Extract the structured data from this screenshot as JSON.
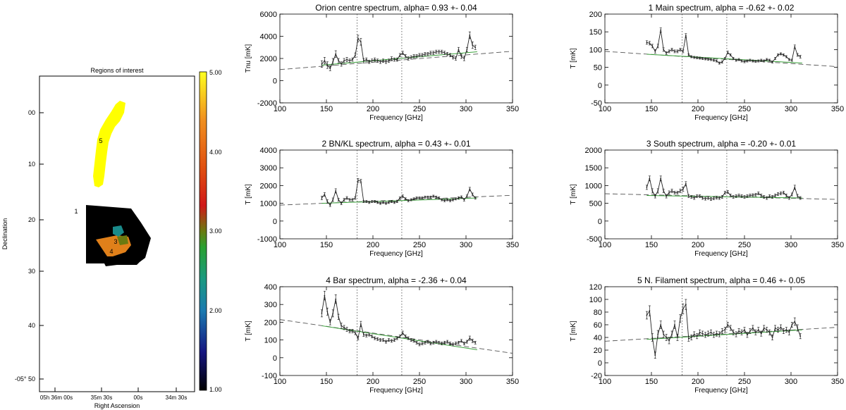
{
  "map": {
    "title": "Regions of interest",
    "xlabel": "Right Ascension",
    "ylabel": "Declination",
    "dec_ticks": [
      "00",
      "10",
      "20",
      "30",
      "40",
      "-05° 50"
    ],
    "ra_ticks": [
      "05h 36m 00s",
      "35m 30s",
      "00s",
      "34m 30s"
    ],
    "colorbar_ticks": [
      "5.00",
      "4.00",
      "3.00",
      "2.00",
      "1.00"
    ],
    "colorbar_range": [
      1,
      5
    ],
    "region_labels": [
      "1",
      "3",
      "4",
      "5"
    ],
    "region_colors": {
      "1": "#000000",
      "2": "#1a8a8a",
      "3": "#6b7a10",
      "4": "#e0801a",
      "5": "#ffff00"
    }
  },
  "chart_data": [
    {
      "type": "line",
      "title": "Orion centre spectrum, alpha=  0.93 +-  0.04",
      "xlabel": "Frequency [GHz]",
      "ylabel": "Tnu [mK]",
      "xlim": [
        100,
        350
      ],
      "ylim": [
        -2000,
        6000
      ],
      "yticks": [
        -2000,
        0,
        2000,
        4000,
        6000
      ],
      "xticks": [
        100,
        150,
        200,
        250,
        300,
        350
      ],
      "vlines": [
        183,
        231
      ],
      "dashed_fit": {
        "x": [
          100,
          350
        ],
        "y": [
          1000,
          2650
        ]
      },
      "green_fit": {
        "x": [
          145,
          312
        ],
        "y": [
          1400,
          2600
        ]
      },
      "x": [
        145,
        148,
        151,
        154,
        157,
        160,
        163,
        166,
        169,
        172,
        175,
        178,
        181,
        184,
        187,
        190,
        193,
        196,
        199,
        202,
        205,
        208,
        211,
        214,
        217,
        220,
        223,
        226,
        229,
        232,
        235,
        238,
        241,
        244,
        247,
        250,
        253,
        256,
        259,
        262,
        265,
        268,
        271,
        274,
        277,
        280,
        283,
        286,
        289,
        292,
        295,
        298,
        301,
        304,
        307,
        310
      ],
      "y": [
        1500,
        1800,
        1400,
        1100,
        1700,
        2400,
        1800,
        1500,
        1800,
        1900,
        1800,
        1900,
        2300,
        3800,
        3500,
        1800,
        1900,
        1700,
        1800,
        1900,
        1800,
        1700,
        1800,
        1700,
        1800,
        2000,
        1900,
        1900,
        2300,
        2500,
        2200,
        2000,
        2100,
        2200,
        2200,
        2300,
        2300,
        2400,
        2400,
        2500,
        2500,
        2600,
        2600,
        2600,
        2500,
        2400,
        2300,
        2100,
        2000,
        2800,
        2200,
        2000,
        2800,
        4100,
        3200,
        3000
      ],
      "errors": [
        300,
        300,
        300,
        200,
        300,
        300,
        200,
        200,
        200,
        200,
        150,
        150,
        200,
        300,
        300,
        200,
        150,
        150,
        150,
        150,
        150,
        150,
        150,
        150,
        150,
        150,
        150,
        150,
        150,
        150,
        150,
        150,
        150,
        150,
        150,
        150,
        150,
        150,
        150,
        150,
        150,
        150,
        150,
        150,
        150,
        150,
        150,
        150,
        150,
        200,
        200,
        200,
        200,
        300,
        300,
        200
      ]
    },
    {
      "type": "line",
      "title": "1 Main spectrum, alpha = -0.62 +-  0.02",
      "xlabel": "Frequency [GHz]",
      "ylabel": "T [mK]",
      "xlim": [
        100,
        350
      ],
      "ylim": [
        -50,
        200
      ],
      "yticks": [
        -50,
        0,
        50,
        100,
        150,
        200
      ],
      "xticks": [
        100,
        150,
        200,
        250,
        300,
        350
      ],
      "vlines": [
        183,
        231
      ],
      "dashed_fit": {
        "x": [
          100,
          350
        ],
        "y": [
          95,
          52
        ]
      },
      "green_fit": {
        "x": [
          145,
          312
        ],
        "y": [
          87,
          62
        ]
      },
      "x": [
        145,
        148,
        151,
        154,
        157,
        160,
        163,
        166,
        169,
        172,
        175,
        178,
        181,
        184,
        187,
        190,
        193,
        196,
        199,
        202,
        205,
        208,
        211,
        214,
        217,
        220,
        223,
        226,
        229,
        232,
        235,
        238,
        241,
        244,
        247,
        250,
        253,
        256,
        259,
        262,
        265,
        268,
        271,
        274,
        277,
        280,
        283,
        286,
        289,
        292,
        295,
        298,
        301,
        304,
        307,
        310
      ],
      "y": [
        120,
        118,
        110,
        95,
        110,
        155,
        100,
        90,
        95,
        100,
        95,
        95,
        100,
        95,
        140,
        85,
        80,
        78,
        77,
        76,
        75,
        74,
        73,
        72,
        70,
        68,
        62,
        65,
        75,
        92,
        85,
        75,
        70,
        72,
        68,
        66,
        68,
        70,
        68,
        67,
        68,
        70,
        68,
        72,
        70,
        65,
        75,
        85,
        88,
        85,
        80,
        72,
        70,
        108,
        85,
        80
      ],
      "errors": [
        5,
        5,
        5,
        5,
        5,
        6,
        5,
        4,
        4,
        4,
        4,
        4,
        4,
        4,
        5,
        3,
        3,
        3,
        3,
        3,
        3,
        3,
        3,
        3,
        3,
        3,
        3,
        3,
        3,
        4,
        3,
        3,
        3,
        3,
        3,
        3,
        3,
        3,
        3,
        3,
        3,
        3,
        3,
        3,
        3,
        3,
        3,
        3,
        3,
        3,
        3,
        3,
        3,
        5,
        4,
        4
      ]
    },
    {
      "type": "line",
      "title": "2 BN/KL spectrum, alpha =  0.43 +-  0.01",
      "xlabel": "Frequency [GHz]",
      "ylabel": "T [mK]",
      "xlim": [
        100,
        350
      ],
      "ylim": [
        -1000,
        4000
      ],
      "yticks": [
        -1000,
        0,
        1000,
        2000,
        3000,
        4000
      ],
      "xticks": [
        100,
        150,
        200,
        250,
        300,
        350
      ],
      "vlines": [
        183,
        231
      ],
      "dashed_fit": {
        "x": [
          100,
          350
        ],
        "y": [
          900,
          1450
        ]
      },
      "green_fit": {
        "x": [
          145,
          312
        ],
        "y": [
          1000,
          1300
        ]
      },
      "x": [
        145,
        148,
        151,
        154,
        157,
        160,
        163,
        166,
        169,
        172,
        175,
        178,
        181,
        184,
        187,
        190,
        193,
        196,
        199,
        202,
        205,
        208,
        211,
        214,
        217,
        220,
        223,
        226,
        229,
        232,
        235,
        238,
        241,
        244,
        247,
        250,
        253,
        256,
        259,
        262,
        265,
        268,
        271,
        274,
        277,
        280,
        283,
        286,
        289,
        292,
        295,
        298,
        301,
        304,
        307,
        310
      ],
      "y": [
        1300,
        1500,
        1100,
        900,
        1200,
        1700,
        1200,
        1000,
        1200,
        1300,
        1200,
        1200,
        1300,
        2300,
        2250,
        1100,
        1100,
        1050,
        1100,
        1100,
        1050,
        1000,
        1050,
        1000,
        1050,
        1100,
        1050,
        1100,
        1300,
        1400,
        1250,
        1150,
        1200,
        1250,
        1300,
        1300,
        1300,
        1350,
        1350,
        1350,
        1400,
        1350,
        1300,
        1200,
        1150,
        1200,
        1150,
        1200,
        1250,
        1300,
        1350,
        1200,
        1400,
        1800,
        1500,
        1300
      ],
      "errors": [
        100,
        100,
        100,
        80,
        100,
        120,
        80,
        80,
        80,
        80,
        70,
        70,
        80,
        100,
        100,
        60,
        60,
        60,
        60,
        60,
        60,
        60,
        60,
        60,
        60,
        60,
        60,
        60,
        60,
        70,
        60,
        60,
        60,
        60,
        60,
        60,
        60,
        60,
        60,
        60,
        60,
        60,
        60,
        60,
        60,
        60,
        60,
        60,
        60,
        70,
        70,
        70,
        70,
        100,
        80,
        70
      ]
    },
    {
      "type": "line",
      "title": "3 South spectrum, alpha = -0.20 +-  0.01",
      "xlabel": "Frequency [GHz]",
      "ylabel": "T [mK]",
      "xlim": [
        100,
        350
      ],
      "ylim": [
        -500,
        2000
      ],
      "yticks": [
        -500,
        0,
        500,
        1000,
        1500,
        2000
      ],
      "xticks": [
        100,
        150,
        200,
        250,
        300,
        350
      ],
      "vlines": [
        183,
        231
      ],
      "dashed_fit": {
        "x": [
          100,
          350
        ],
        "y": [
          770,
          610
        ]
      },
      "green_fit": {
        "x": [
          145,
          312
        ],
        "y": [
          720,
          650
        ]
      },
      "x": [
        145,
        148,
        151,
        154,
        157,
        160,
        163,
        166,
        169,
        172,
        175,
        178,
        181,
        184,
        187,
        190,
        193,
        196,
        199,
        202,
        205,
        208,
        211,
        214,
        217,
        220,
        223,
        226,
        229,
        232,
        235,
        238,
        241,
        244,
        247,
        250,
        253,
        256,
        259,
        262,
        265,
        268,
        271,
        274,
        277,
        280,
        283,
        286,
        289,
        292,
        295,
        298,
        301,
        304,
        307,
        310
      ],
      "y": [
        950,
        1200,
        850,
        700,
        850,
        1200,
        850,
        700,
        800,
        850,
        800,
        800,
        850,
        900,
        1050,
        700,
        680,
        650,
        700,
        700,
        650,
        630,
        650,
        620,
        640,
        660,
        650,
        680,
        800,
        820,
        720,
        680,
        700,
        720,
        700,
        680,
        700,
        720,
        730,
        740,
        780,
        720,
        680,
        650,
        700,
        680,
        720,
        760,
        780,
        800,
        720,
        650,
        750,
        950,
        700,
        650
      ],
      "errors": [
        60,
        70,
        60,
        50,
        60,
        70,
        50,
        50,
        50,
        50,
        40,
        40,
        50,
        60,
        60,
        40,
        40,
        40,
        40,
        40,
        40,
        40,
        40,
        40,
        40,
        40,
        40,
        40,
        40,
        40,
        40,
        40,
        40,
        40,
        40,
        40,
        40,
        40,
        40,
        40,
        40,
        40,
        40,
        40,
        40,
        40,
        40,
        40,
        40,
        40,
        40,
        40,
        40,
        60,
        50,
        40
      ]
    },
    {
      "type": "line",
      "title": "4 Bar spectrum, alpha = -2.36 +-  0.04",
      "xlabel": "Frequency [GHz]",
      "ylabel": "T [mK]",
      "xlim": [
        100,
        350
      ],
      "ylim": [
        -100,
        400
      ],
      "yticks": [
        -100,
        0,
        100,
        200,
        300,
        400
      ],
      "xticks": [
        100,
        150,
        200,
        250,
        300,
        350
      ],
      "vlines": [
        183,
        231
      ],
      "dashed_fit": {
        "x": [
          100,
          350
        ],
        "y": [
          215,
          25
        ]
      },
      "green_fit": {
        "x": [
          145,
          312
        ],
        "y": [
          180,
          45
        ]
      },
      "x": [
        145,
        148,
        151,
        154,
        157,
        160,
        163,
        166,
        169,
        172,
        175,
        178,
        181,
        184,
        187,
        190,
        193,
        196,
        199,
        202,
        205,
        208,
        211,
        214,
        217,
        220,
        223,
        226,
        229,
        232,
        235,
        238,
        241,
        244,
        247,
        250,
        253,
        256,
        259,
        262,
        265,
        268,
        271,
        274,
        277,
        280,
        283,
        286,
        289,
        292,
        295,
        298,
        301,
        304,
        307,
        310
      ],
      "y": [
        250,
        350,
        260,
        200,
        250,
        330,
        230,
        180,
        170,
        160,
        150,
        150,
        140,
        110,
        190,
        130,
        125,
        130,
        120,
        110,
        105,
        100,
        100,
        90,
        100,
        95,
        100,
        110,
        120,
        140,
        120,
        110,
        100,
        95,
        85,
        75,
        80,
        85,
        90,
        80,
        85,
        90,
        85,
        80,
        85,
        90,
        80,
        75,
        80,
        85,
        95,
        80,
        90,
        110,
        95,
        85
      ],
      "errors": [
        20,
        25,
        20,
        15,
        20,
        25,
        15,
        15,
        12,
        12,
        10,
        10,
        10,
        10,
        15,
        10,
        8,
        8,
        8,
        8,
        8,
        8,
        8,
        8,
        8,
        8,
        8,
        8,
        8,
        10,
        8,
        8,
        8,
        8,
        8,
        8,
        8,
        8,
        8,
        8,
        8,
        8,
        8,
        8,
        8,
        8,
        8,
        8,
        8,
        8,
        8,
        8,
        8,
        12,
        10,
        8
      ]
    },
    {
      "type": "line",
      "title": "5 N. Filament spectrum, alpha =  0.46 +-  0.05",
      "xlabel": "Frequency [GHz]",
      "ylabel": "T [mK]",
      "xlim": [
        100,
        350
      ],
      "ylim": [
        -20,
        120
      ],
      "yticks": [
        -20,
        0,
        20,
        40,
        60,
        80,
        100,
        120
      ],
      "xticks": [
        100,
        150,
        200,
        250,
        300,
        350
      ],
      "vlines": [
        183,
        231
      ],
      "dashed_fit": {
        "x": [
          100,
          350
        ],
        "y": [
          34,
          56
        ]
      },
      "green_fit": {
        "x": [
          145,
          312
        ],
        "y": [
          37,
          52
        ]
      },
      "x": [
        145,
        148,
        151,
        154,
        157,
        160,
        163,
        166,
        169,
        172,
        175,
        178,
        181,
        184,
        187,
        190,
        193,
        196,
        199,
        202,
        205,
        208,
        211,
        214,
        217,
        220,
        223,
        226,
        229,
        232,
        235,
        238,
        241,
        244,
        247,
        250,
        253,
        256,
        259,
        262,
        265,
        268,
        271,
        274,
        277,
        280,
        283,
        286,
        289,
        292,
        295,
        298,
        301,
        304,
        307,
        310
      ],
      "y": [
        75,
        82,
        40,
        12,
        45,
        60,
        45,
        40,
        35,
        45,
        60,
        40,
        70,
        85,
        92,
        38,
        40,
        45,
        42,
        48,
        46,
        44,
        46,
        48,
        44,
        46,
        45,
        50,
        52,
        60,
        55,
        48,
        45,
        50,
        48,
        52,
        44,
        50,
        55,
        48,
        52,
        46,
        55,
        52,
        48,
        40,
        55,
        52,
        56,
        50,
        52,
        48,
        60,
        65,
        55,
        42
      ],
      "errors": [
        6,
        8,
        6,
        5,
        6,
        6,
        5,
        5,
        5,
        5,
        6,
        5,
        6,
        8,
        8,
        4,
        4,
        4,
        4,
        4,
        4,
        4,
        4,
        4,
        4,
        4,
        4,
        4,
        4,
        4,
        4,
        4,
        4,
        4,
        4,
        4,
        4,
        4,
        4,
        4,
        4,
        4,
        4,
        4,
        4,
        4,
        4,
        4,
        4,
        4,
        4,
        4,
        4,
        6,
        5,
        4
      ]
    }
  ]
}
